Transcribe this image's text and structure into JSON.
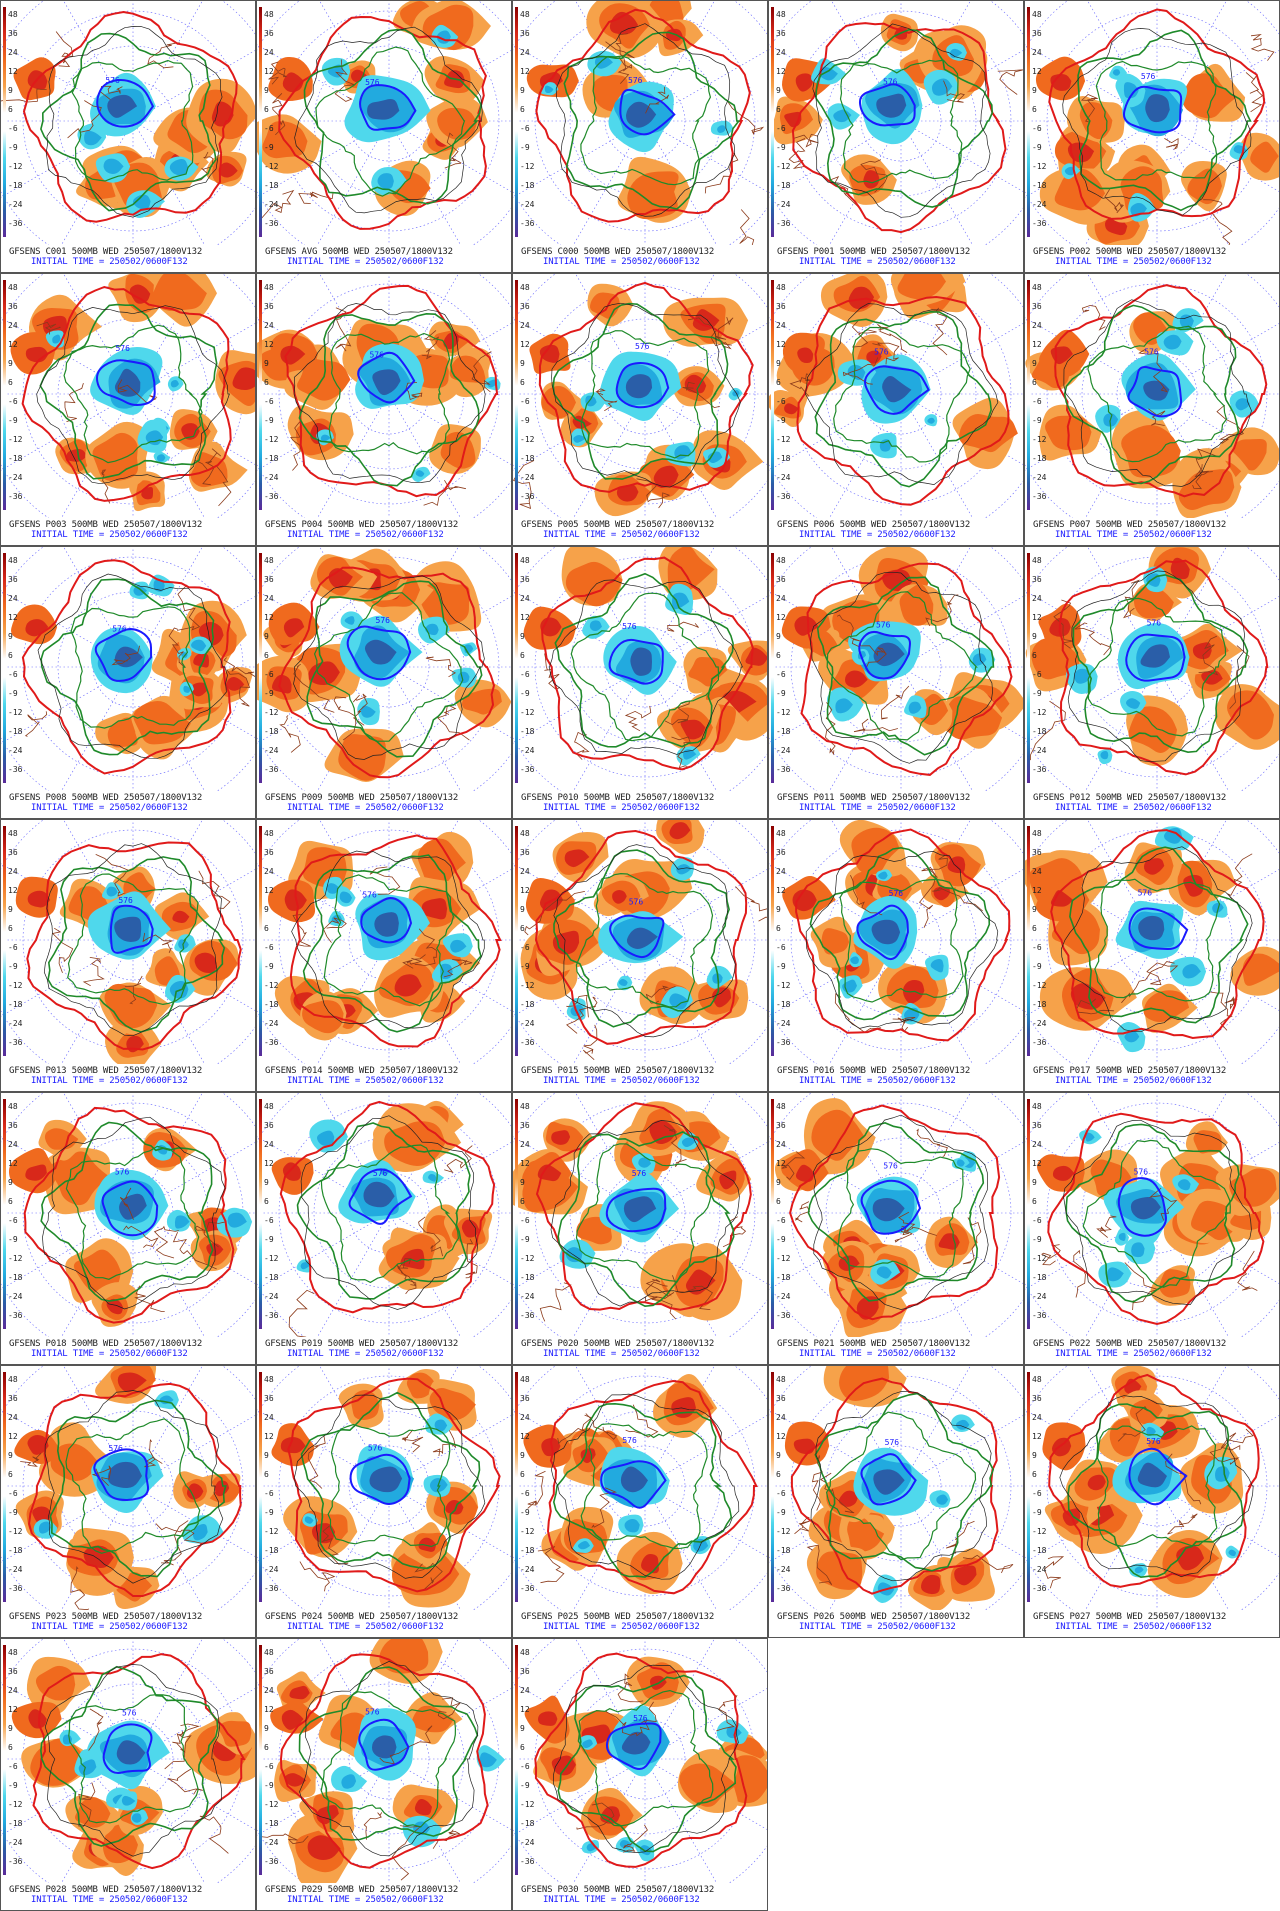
{
  "panels": [
    {
      "title": "GFSENS C001 500MB WED 250507/1800V132",
      "init": "INITIAL TIME = 250502/0600F132"
    },
    {
      "title": "GFSENS AVG 500MB WED 250507/1800V132",
      "init": "INITIAL TIME = 250502/0600F132"
    },
    {
      "title": "GFSENS C000 500MB WED 250507/1800V132",
      "init": "INITIAL TIME = 250502/0600F132"
    },
    {
      "title": "GFSENS P001 500MB WED 250507/1800V132",
      "init": "INITIAL TIME = 250502/0600F132"
    },
    {
      "title": "GFSENS P002 500MB WED 250507/1800V132",
      "init": "INITIAL TIME = 250502/0600F132"
    },
    {
      "title": "GFSENS P003 500MB WED 250507/1800V132",
      "init": "INITIAL TIME = 250502/0600F132"
    },
    {
      "title": "GFSENS P004 500MB WED 250507/1800V132",
      "init": "INITIAL TIME = 250502/0600F132"
    },
    {
      "title": "GFSENS P005 500MB WED 250507/1800V132",
      "init": "INITIAL TIME = 250502/0600F132"
    },
    {
      "title": "GFSENS P006 500MB WED 250507/1800V132",
      "init": "INITIAL TIME = 250502/0600F132"
    },
    {
      "title": "GFSENS P007 500MB WED 250507/1800V132",
      "init": "INITIAL TIME = 250502/0600F132"
    },
    {
      "title": "GFSENS P008 500MB WED 250507/1800V132",
      "init": "INITIAL TIME = 250502/0600F132"
    },
    {
      "title": "GFSENS P009 500MB WED 250507/1800V132",
      "init": "INITIAL TIME = 250502/0600F132"
    },
    {
      "title": "GFSENS P010 500MB WED 250507/1800V132",
      "init": "INITIAL TIME = 250502/0600F132"
    },
    {
      "title": "GFSENS P011 500MB WED 250507/1800V132",
      "init": "INITIAL TIME = 250502/0600F132"
    },
    {
      "title": "GFSENS P012 500MB WED 250507/1800V132",
      "init": "INITIAL TIME = 250502/0600F132"
    },
    {
      "title": "GFSENS P013 500MB WED 250507/1800V132",
      "init": "INITIAL TIME = 250502/0600F132"
    },
    {
      "title": "GFSENS P014 500MB WED 250507/1800V132",
      "init": "INITIAL TIME = 250502/0600F132"
    },
    {
      "title": "GFSENS P015 500MB WED 250507/1800V132",
      "init": "INITIAL TIME = 250502/0600F132"
    },
    {
      "title": "GFSENS P016 500MB WED 250507/1800V132",
      "init": "INITIAL TIME = 250502/0600F132"
    },
    {
      "title": "GFSENS P017 500MB WED 250507/1800V132",
      "init": "INITIAL TIME = 250502/0600F132"
    },
    {
      "title": "GFSENS P018 500MB WED 250507/1800V132",
      "init": "INITIAL TIME = 250502/0600F132"
    },
    {
      "title": "GFSENS P019 500MB WED 250507/1800V132",
      "init": "INITIAL TIME = 250502/0600F132"
    },
    {
      "title": "GFSENS P020 500MB WED 250507/1800V132",
      "init": "INITIAL TIME = 250502/0600F132"
    },
    {
      "title": "GFSENS P021 500MB WED 250507/1800V132",
      "init": "INITIAL TIME = 250502/0600F132"
    },
    {
      "title": "GFSENS P022 500MB WED 250507/1800V132",
      "init": "INITIAL TIME = 250502/0600F132"
    },
    {
      "title": "GFSENS P023 500MB WED 250507/1800V132",
      "init": "INITIAL TIME = 250502/0600F132"
    },
    {
      "title": "GFSENS P024 500MB WED 250507/1800V132",
      "init": "INITIAL TIME = 250502/0600F132"
    },
    {
      "title": "GFSENS P025 500MB WED 250507/1800V132",
      "init": "INITIAL TIME = 250502/0600F132"
    },
    {
      "title": "GFSENS P026 500MB WED 250507/1800V132",
      "init": "INITIAL TIME = 250502/0600F132"
    },
    {
      "title": "GFSENS P027 500MB WED 250507/1800V132",
      "init": "INITIAL TIME = 250502/0600F132"
    },
    {
      "title": "GFSENS P028 500MB WED 250507/1800V132",
      "init": "INITIAL TIME = 250502/0600F132"
    },
    {
      "title": "GFSENS P029 500MB WED 250507/1800V132",
      "init": "INITIAL TIME = 250502/0600F132"
    },
    {
      "title": "GFSENS P030 500MB WED 250507/1800V132",
      "init": "INITIAL TIME = 250502/0600F132"
    }
  ],
  "scale_ticks": [
    "48",
    "36",
    "24",
    "12",
    "9",
    "6",
    "-6",
    "-9",
    "-12",
    "-18",
    "-24",
    "-36"
  ],
  "contour_label": "576",
  "colors": {
    "warm_light": "#f6a24a",
    "warm": "#f06a1e",
    "warm_dark": "#d8281a",
    "cool_light": "#4fd8ec",
    "cool": "#22aadf",
    "cool_dark": "#2a5ea8",
    "contour_blue": "#1a1aff",
    "contour_green": "#1f8a2a",
    "contour_red": "#e01a1a",
    "coast": "#8b3a1a",
    "grid_line": "#3a3aff"
  }
}
